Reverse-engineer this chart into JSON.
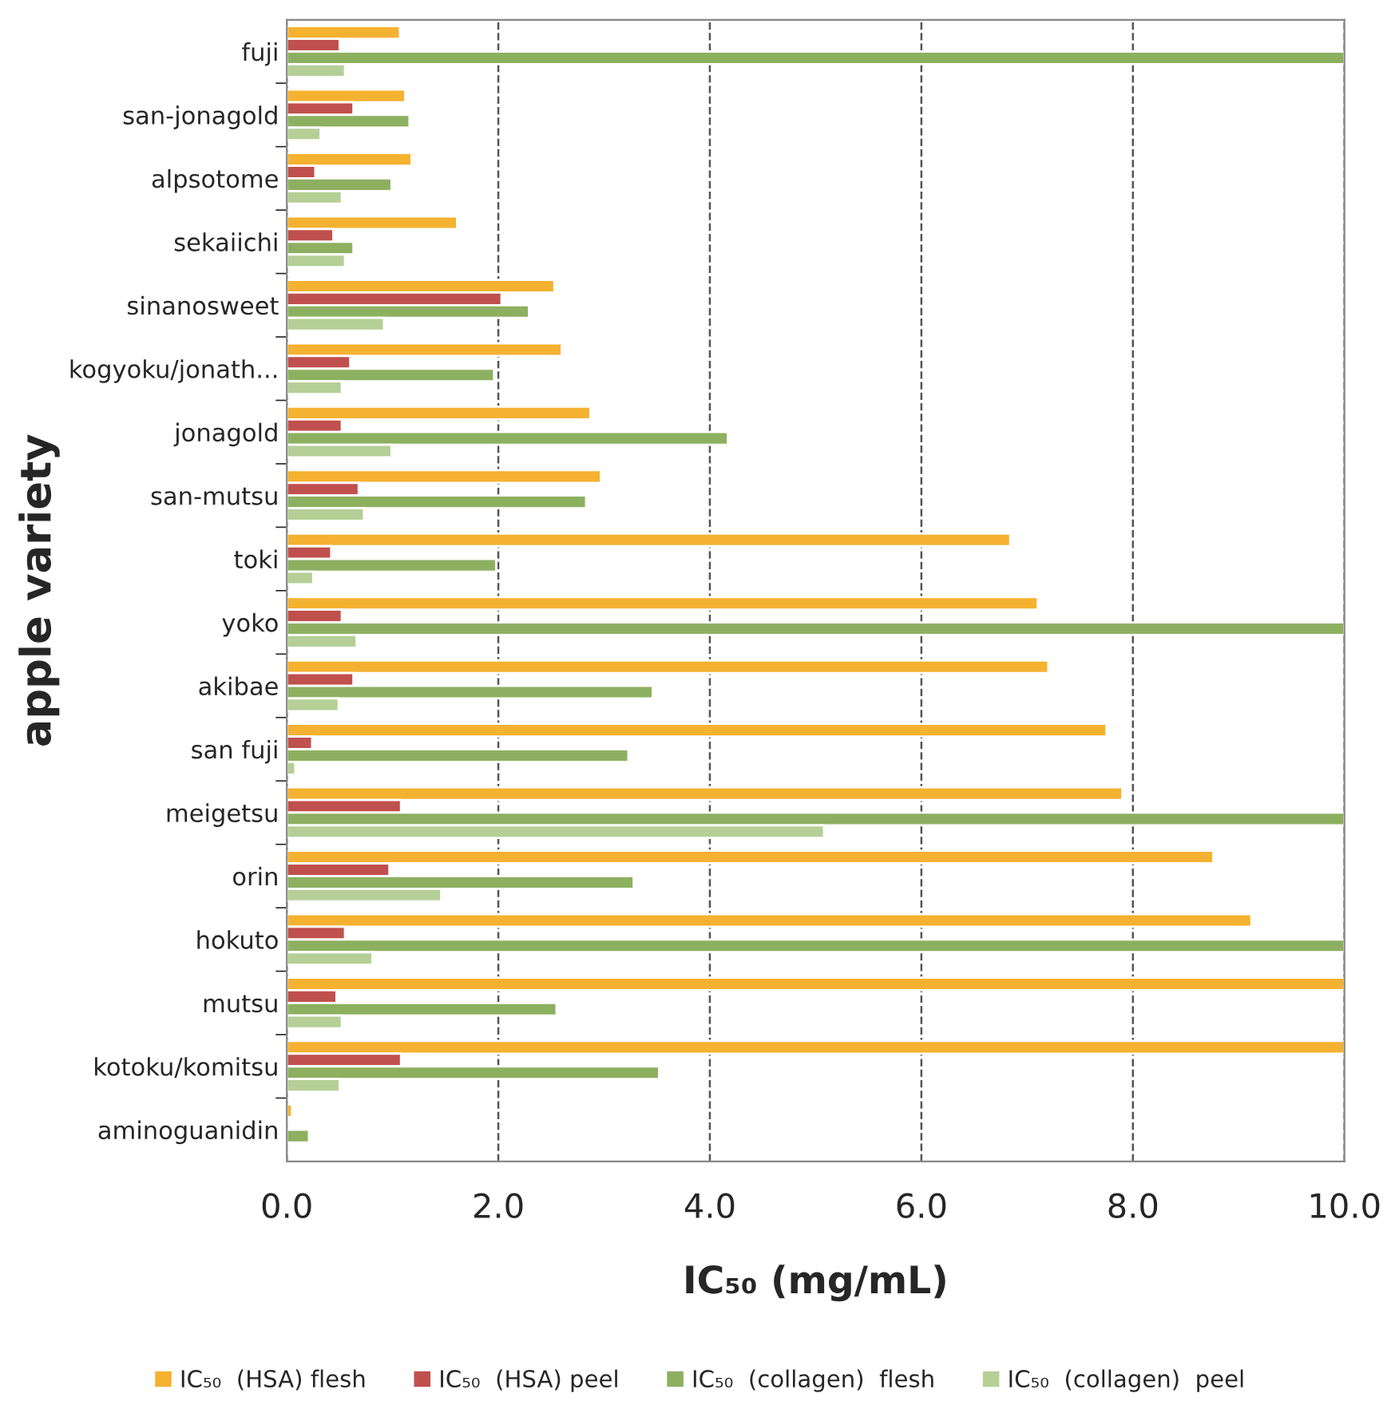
{
  "chart_data": {
    "type": "bar",
    "orientation": "horizontal",
    "xlabel": "IC₅₀ (mg/mL)",
    "ylabel": "apple variety",
    "categories": [
      "fuji",
      "san-jonagold",
      "alpsotome",
      "sekaiichi",
      "sinanosweet",
      "kogyoku/jonath...",
      "jonagold",
      "san-mutsu",
      "toki",
      "yoko",
      "akibae",
      "san fuji",
      "meigetsu",
      "orin",
      "hokuto",
      "mutsu",
      "kotoku/komitsu",
      "aminoguanidin"
    ],
    "series": [
      {
        "name": "IC₅₀  (HSA) flesh",
        "color": "#f5b130",
        "values": [
          1.07,
          1.12,
          1.18,
          1.61,
          2.53,
          2.6,
          2.87,
          2.97,
          6.84,
          7.1,
          7.2,
          7.75,
          7.9,
          8.76,
          9.12,
          10,
          10,
          0.05
        ]
      },
      {
        "name": "IC₅₀  (HSA) peel",
        "color": "#c0504d",
        "values": [
          0.5,
          0.63,
          0.27,
          0.44,
          2.03,
          0.6,
          0.52,
          0.68,
          0.42,
          0.52,
          0.63,
          0.24,
          1.08,
          0.97,
          0.55,
          0.47,
          1.08,
          null
        ]
      },
      {
        "name": "IC₅₀  (collagen)  flesh",
        "color": "#8db060",
        "values": [
          10,
          1.16,
          0.99,
          0.63,
          2.29,
          1.96,
          4.17,
          2.83,
          1.98,
          10,
          3.46,
          3.23,
          10,
          3.28,
          10,
          2.55,
          3.52,
          0.21
        ]
      },
      {
        "name": "IC₅₀  (collagen)  peel",
        "color": "#b5cf96",
        "values": [
          0.55,
          0.32,
          0.52,
          0.55,
          0.92,
          0.52,
          0.99,
          0.73,
          0.25,
          0.66,
          0.49,
          0.08,
          5.08,
          1.46,
          0.81,
          0.52,
          0.5,
          null
        ]
      }
    ],
    "xlim": [
      0,
      10
    ],
    "xticks": [
      {
        "value": 0,
        "label": "0.0"
      },
      {
        "value": 2,
        "label": "2.0"
      },
      {
        "value": 4,
        "label": "4.0"
      },
      {
        "value": 6,
        "label": "6.0"
      },
      {
        "value": 8,
        "label": "8.0"
      },
      {
        "value": 10,
        "label": "10.0"
      }
    ],
    "grid": "x",
    "legend": "bottom"
  }
}
